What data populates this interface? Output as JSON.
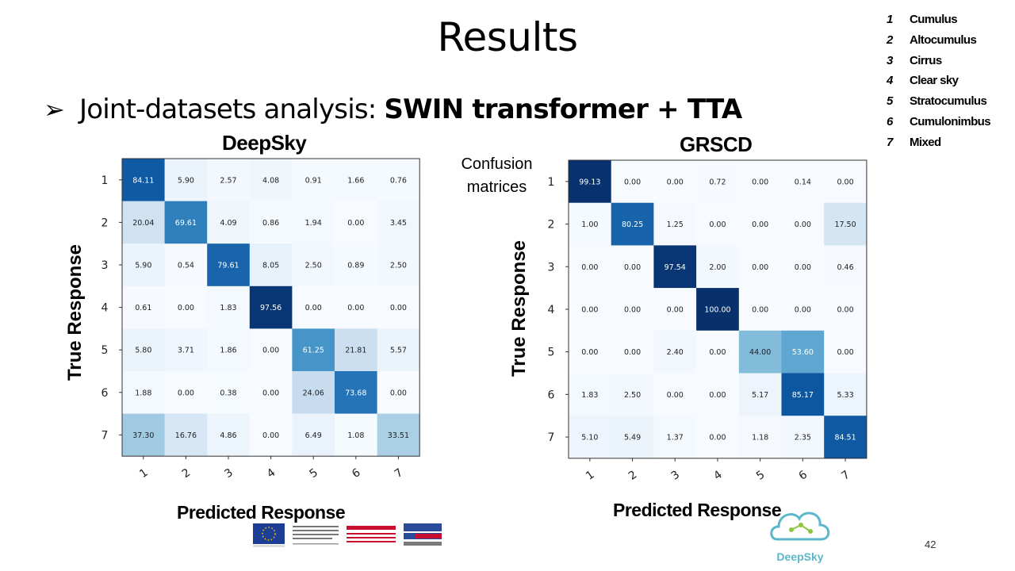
{
  "slide": {
    "title": "Results",
    "bullet_symbol": "➢",
    "bullet_text": "Joint-datasets analysis: ",
    "bullet_bold": "SWIN transformer + TTA",
    "note_line1": "Confusion",
    "note_line2": "matrices",
    "page_number": "42",
    "logo_text": "DeepSky"
  },
  "legend": [
    {
      "num": "1",
      "label": "Cumulus"
    },
    {
      "num": "2",
      "label": "Altocumulus"
    },
    {
      "num": "3",
      "label": "Cirrus"
    },
    {
      "num": "4",
      "label": "Clear sky"
    },
    {
      "num": "5",
      "label": "Stratocumulus"
    },
    {
      "num": "6",
      "label": "Cumulonimbus"
    },
    {
      "num": "7",
      "label": "Mixed"
    }
  ],
  "chart_data": [
    {
      "type": "heatmap",
      "title": "DeepSky",
      "xlabel": "Predicted Response",
      "ylabel": "True Response",
      "x_ticks": [
        "1",
        "2",
        "3",
        "4",
        "5",
        "6",
        "7"
      ],
      "y_ticks": [
        "1",
        "2",
        "3",
        "4",
        "5",
        "6",
        "7"
      ],
      "colormap": "Blues",
      "values": [
        [
          "84.11",
          "5.90",
          "2.57",
          "4.08",
          "0.91",
          "1.66",
          "0.76"
        ],
        [
          "20.04",
          "69.61",
          "4.09",
          "0.86",
          "1.94",
          "0.00",
          "3.45"
        ],
        [
          "5.90",
          "0.54",
          "79.61",
          "8.05",
          "2.50",
          "0.89",
          "2.50"
        ],
        [
          "0.61",
          "0.00",
          "1.83",
          "97.56",
          "0.00",
          "0.00",
          "0.00"
        ],
        [
          "5.80",
          "3.71",
          "1.86",
          "0.00",
          "61.25",
          "21.81",
          "5.57"
        ],
        [
          "1.88",
          "0.00",
          "0.38",
          "0.00",
          "24.06",
          "73.68",
          "0.00"
        ],
        [
          "37.30",
          "16.76",
          "4.86",
          "0.00",
          "6.49",
          "1.08",
          "33.51"
        ]
      ]
    },
    {
      "type": "heatmap",
      "title": "GRSCD",
      "xlabel": "Predicted Response",
      "ylabel": "True Response",
      "x_ticks": [
        "1",
        "2",
        "3",
        "4",
        "5",
        "6",
        "7"
      ],
      "y_ticks": [
        "1",
        "2",
        "3",
        "4",
        "5",
        "6",
        "7"
      ],
      "colormap": "Blues",
      "values": [
        [
          "99.13",
          "0.00",
          "0.00",
          "0.72",
          "0.00",
          "0.14",
          "0.00"
        ],
        [
          "1.00",
          "80.25",
          "1.25",
          "0.00",
          "0.00",
          "0.00",
          "17.50"
        ],
        [
          "0.00",
          "0.00",
          "97.54",
          "2.00",
          "0.00",
          "0.00",
          "0.46"
        ],
        [
          "0.00",
          "0.00",
          "0.00",
          "100.00",
          "0.00",
          "0.00",
          "0.00"
        ],
        [
          "0.00",
          "0.00",
          "2.40",
          "0.00",
          "44.00",
          "53.60",
          "0.00"
        ],
        [
          "1.83",
          "2.50",
          "0.00",
          "0.00",
          "5.17",
          "85.17",
          "5.33"
        ],
        [
          "5.10",
          "5.49",
          "1.37",
          "0.00",
          "1.18",
          "2.35",
          "84.51"
        ]
      ]
    }
  ]
}
